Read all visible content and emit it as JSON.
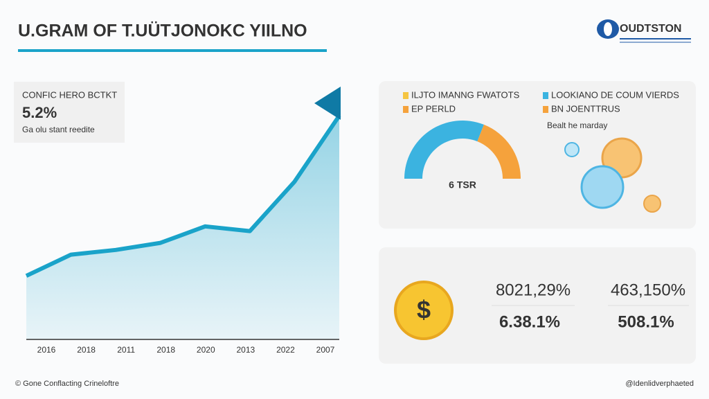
{
  "header": {
    "title": "U.GRAM OF T.UÜTJONOKC YIILNO",
    "logo": "OUDTSTON"
  },
  "card": {
    "label": "CONFIC HERO BCTKT",
    "value": "5.2%",
    "note": "Ga olu stant reedite"
  },
  "chart_data": [
    {
      "type": "line",
      "categories": [
        "2016",
        "2018",
        "2011",
        "2018",
        "2020",
        "2013",
        "2022",
        "2007"
      ],
      "values": [
        27,
        36,
        38,
        41,
        48,
        46,
        67,
        95
      ],
      "color": "#1aa3c9",
      "ylim": [
        0,
        100
      ]
    },
    {
      "type": "gauge",
      "center_label": "6 TSR",
      "series": [
        {
          "color": "#3bb3e0",
          "values": [
            62
          ]
        },
        {
          "color": "#f5a23c",
          "values": [
            38
          ]
        }
      ]
    }
  ],
  "legend": [
    {
      "name": "ILJTO IMANNG FWATOTS",
      "color": "#f5c542"
    },
    {
      "name": "EP PERLD",
      "color": "#f5a23c"
    },
    {
      "name": "LOOKIANO DE COUM VIERDS",
      "color": "#3bb3e0"
    },
    {
      "name": "BN JOENTTRUS",
      "color": "#f5a23c"
    }
  ],
  "panel_note": "Bealt he marday",
  "stats": [
    {
      "top": "8021,29%",
      "bottom": "6.38.1%"
    },
    {
      "top": "463,150%",
      "bottom": "508.1%"
    }
  ],
  "footer": {
    "left": "© Gone Conflacting Crineloftre",
    "right": "@Idenlidverphaeted"
  }
}
